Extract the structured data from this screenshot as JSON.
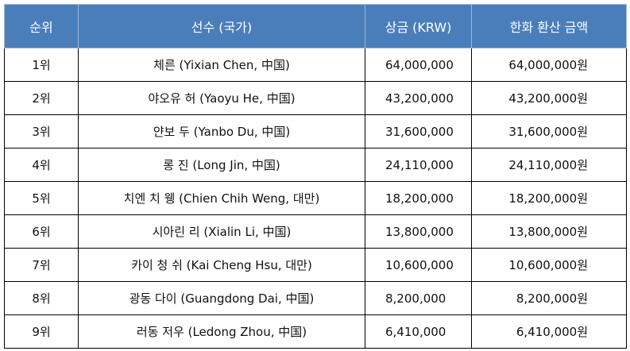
{
  "table": {
    "headers": [
      "순위",
      "선수 (국가)",
      "상금 (KRW)",
      "한화 환산 금액"
    ],
    "rows": [
      {
        "rank": "1위",
        "player": "체른 (Yixian Chen, 中国)",
        "prize": "64,000,000",
        "krw": "64,000,000원"
      },
      {
        "rank": "2위",
        "player": "야오유 허 (Yaoyu He, 中国)",
        "prize": "43,200,000",
        "krw": "43,200,000원"
      },
      {
        "rank": "3위",
        "player": "얀보 두 (Yanbo Du, 中国)",
        "prize": "31,600,000",
        "krw": "31,600,000원"
      },
      {
        "rank": "4위",
        "player": "롱 진 (Long Jin, 中国)",
        "prize": "24,110,000",
        "krw": "24,110,000원"
      },
      {
        "rank": "5위",
        "player": "치엔 치 웽 (Chien Chih Weng, 대만)",
        "prize": "18,200,000",
        "krw": "18,200,000원"
      },
      {
        "rank": "6위",
        "player": "시아린 리 (Xialin Li, 中国)",
        "prize": "13,800,000",
        "krw": "13,800,000원"
      },
      {
        "rank": "7위",
        "player": "카이 청 쉬 (Kai Cheng Hsu, 대만)",
        "prize": "10,600,000",
        "krw": "10,600,000원"
      },
      {
        "rank": "8위",
        "player": "광동 다이 (Guangdong Dai, 中国)",
        "prize": "8,200,000",
        "krw": "8,200,000원"
      },
      {
        "rank": "9위",
        "player": "러동 저우 (Ledong Zhou, 中国)",
        "prize": "6,410,000",
        "krw": "6,410,000원"
      }
    ]
  }
}
